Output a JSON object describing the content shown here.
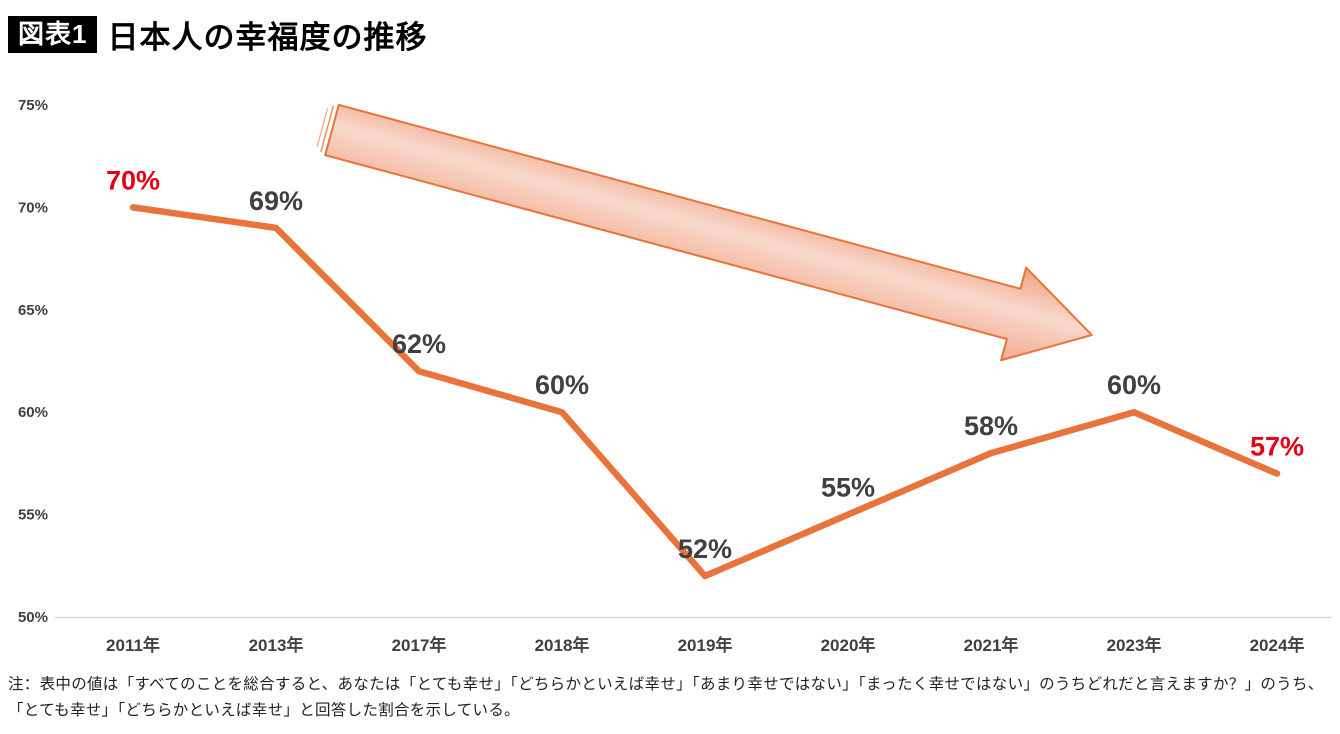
{
  "header": {
    "badge": "図表1",
    "title": "日本人の幸福度の推移"
  },
  "chart_data": {
    "type": "line",
    "title": "日本人の幸福度の推移",
    "categories": [
      "2011年",
      "2013年",
      "2017年",
      "2018年",
      "2019年",
      "2020年",
      "2021年",
      "2023年",
      "2024年"
    ],
    "values": [
      70,
      69,
      62,
      60,
      52,
      55,
      58,
      60,
      57
    ],
    "point_labels": [
      "70%",
      "69%",
      "62%",
      "60%",
      "52%",
      "55%",
      "58%",
      "60%",
      "57%"
    ],
    "point_label_colors": [
      "#e60012",
      "#404040",
      "#404040",
      "#404040",
      "#404040",
      "#404040",
      "#404040",
      "#404040",
      "#e60012"
    ],
    "ylim": [
      50,
      75
    ],
    "yticks": [
      50,
      55,
      60,
      65,
      70,
      75
    ],
    "ytick_labels": [
      "50%",
      "55%",
      "60%",
      "65%",
      "70%",
      "75%"
    ],
    "xlabel": "",
    "ylabel": "",
    "grid": "off",
    "legend": "none",
    "line_color": "#e8743b",
    "axis_color": "#d9d9d9",
    "annotation": "downward-trend-arrow",
    "annotation_fill": "#f4b49c",
    "annotation_stroke": "#e8743b"
  },
  "note": "注：表中の値は「すべてのことを総合すると、あなたは「とても幸せ」「どちらかといえば幸せ」「あまり幸せではない」「まったく幸せではない」のうちどれだと言えますか？」のうち、「とても幸せ」「どちらかといえば幸せ」と回答した割合を示している。"
}
